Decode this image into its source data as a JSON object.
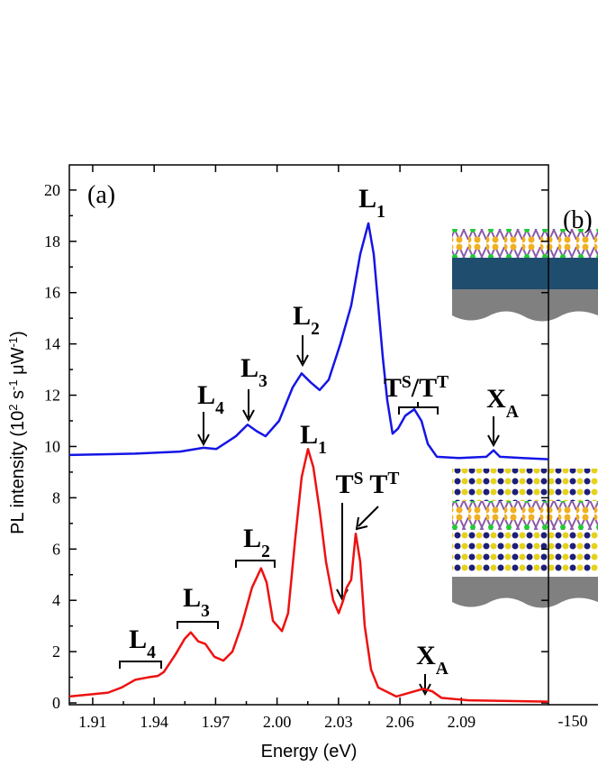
{
  "chart_data": {
    "type": "line",
    "x_label": "Energy (eV)",
    "y_label": [
      {
        "text": "PL intensity (10"
      },
      {
        "text": "2",
        "style": "sup"
      },
      {
        "text": " s"
      },
      {
        "text": "-1",
        "style": "sup"
      },
      {
        "text": " μW"
      },
      {
        "text": "-1",
        "style": "sup"
      },
      {
        "text": ")"
      }
    ],
    "xlim": [
      1.8986,
      2.1325
    ],
    "ylim": [
      -0.07,
      20.98
    ],
    "xticks": [
      1.91,
      1.94,
      1.97,
      {
        "value": 2.0,
        "label": "2.00"
      },
      2.03,
      2.06,
      2.09
    ],
    "yticks": [
      0,
      2,
      4,
      6,
      8,
      10,
      12,
      14,
      16,
      18,
      20
    ],
    "series": [
      {
        "color": "#1515e6",
        "x": [
          1.8986,
          1.9307,
          1.9527,
          1.9641,
          1.9703,
          1.9799,
          1.9856,
          1.99,
          1.9944,
          2.001,
          2.0076,
          2.012,
          2.0164,
          2.0208,
          2.0252,
          2.0309,
          2.0362,
          2.0406,
          2.0446,
          2.0472,
          2.0494,
          2.0516,
          2.0538,
          2.0564,
          2.0591,
          2.0626,
          2.067,
          2.0705,
          2.0736,
          2.078,
          2.089,
          2.1022,
          2.1057,
          2.1088,
          2.1198,
          2.1325
        ],
        "values": [
          9.67,
          9.72,
          9.8,
          9.95,
          9.9,
          10.4,
          10.85,
          10.6,
          10.4,
          11.0,
          12.3,
          12.85,
          12.5,
          12.2,
          12.6,
          14.0,
          15.5,
          17.5,
          18.7,
          17.5,
          15.5,
          13.5,
          11.8,
          10.5,
          10.7,
          11.2,
          11.45,
          11.0,
          10.1,
          9.6,
          9.55,
          9.6,
          9.85,
          9.6,
          9.55,
          9.5
        ]
      },
      {
        "color": "#ee1111",
        "x": [
          1.8986,
          1.9175,
          1.9241,
          1.9307,
          1.9373,
          1.9417,
          1.9447,
          1.9505,
          1.9549,
          1.9579,
          1.9615,
          1.965,
          1.9694,
          1.9738,
          1.9782,
          1.9826,
          1.9878,
          1.9922,
          1.9949,
          1.998,
          2.0024,
          2.0054,
          2.009,
          2.012,
          2.0151,
          2.0177,
          2.0208,
          2.0239,
          2.0274,
          2.0301,
          2.0323,
          2.034,
          2.0362,
          2.0384,
          2.0406,
          2.0428,
          2.0459,
          2.0494,
          2.0582,
          2.067,
          2.0714,
          2.0758,
          2.0802,
          2.0934,
          2.1325
        ],
        "values": [
          0.25,
          0.4,
          0.6,
          0.9,
          1.0,
          1.05,
          1.2,
          1.9,
          2.5,
          2.75,
          2.4,
          2.3,
          1.8,
          1.65,
          2.0,
          3.0,
          4.5,
          5.25,
          4.7,
          3.2,
          2.8,
          3.5,
          6.5,
          8.8,
          9.9,
          9.2,
          7.5,
          5.5,
          4.0,
          3.5,
          4.0,
          4.5,
          4.8,
          6.6,
          5.5,
          3.0,
          1.3,
          0.6,
          0.25,
          0.45,
          0.55,
          0.45,
          0.2,
          0.1,
          0.05
        ]
      }
    ],
    "annotations": [
      [
        {
          "text": "(a)"
        }
      ],
      [
        {
          "text": "(b)"
        }
      ],
      [
        {
          "text": "L"
        },
        {
          "text": "1",
          "style": "sub"
        }
      ],
      [
        {
          "text": "L"
        },
        {
          "text": "2",
          "style": "sub"
        }
      ],
      [
        {
          "text": "L"
        },
        {
          "text": "3",
          "style": "sub"
        }
      ],
      [
        {
          "text": "L"
        },
        {
          "text": "4",
          "style": "sub"
        }
      ],
      [
        {
          "text": "T"
        },
        {
          "text": "S",
          "style": "sup"
        },
        {
          "text": "/T"
        },
        {
          "text": "T",
          "style": "sup"
        }
      ],
      [
        {
          "text": "X"
        },
        {
          "text": "A",
          "style": "sub"
        }
      ],
      [
        {
          "text": "L"
        },
        {
          "text": "1",
          "style": "sub"
        }
      ],
      [
        {
          "text": "T"
        },
        {
          "text": "S",
          "style": "sup"
        },
        {
          "text": " T"
        },
        {
          "text": "T",
          "style": "sup"
        }
      ],
      [
        {
          "text": "L"
        },
        {
          "text": "2",
          "style": "sub"
        }
      ],
      [
        {
          "text": "L"
        },
        {
          "text": "3",
          "style": "sub"
        }
      ],
      [
        {
          "text": "L"
        },
        {
          "text": "4",
          "style": "sub"
        }
      ],
      [
        {
          "text": "X"
        },
        {
          "text": "A",
          "style": "sub"
        }
      ],
      [
        {
          "text": "-150"
        }
      ]
    ]
  }
}
